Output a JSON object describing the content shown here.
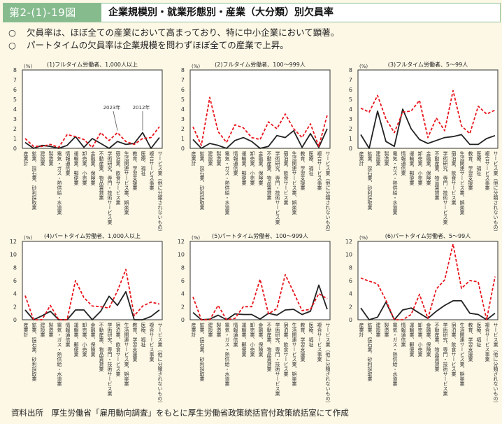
{
  "header": {
    "figure_number": "第2-(1)-19図",
    "title": "企業規模別・就業形態別・産業（大分類）別欠員率"
  },
  "bullets": [
    {
      "mark": "○",
      "text": "欠員率は、ほぼ全ての産業において高まっており、特に中小企業において顕著。"
    },
    {
      "mark": "○",
      "text": "パートタイムの欠員率は企業規模を問わずほぼ全ての産業で上昇。"
    }
  ],
  "source": "資料出所　厚生労働省「雇用動向調査」をもとに厚生労働省政策統括官付政策統括室にて作成",
  "colors": {
    "series_2023": "#e8141c",
    "series_2012": "#222222",
    "header_green": "#86bb8e",
    "background": "#fdf8e6"
  },
  "chart_data": [
    {
      "type": "line",
      "title": "(1)フルタイム労働者、1,000人以上",
      "ylabel": "(%)",
      "ylim": [
        0,
        8
      ],
      "yticks": [
        0,
        1,
        2,
        3,
        4,
        5,
        6,
        7,
        8
      ],
      "categories": [
        "産業計",
        "鉱業、採石業、砂利採取業",
        "建設業",
        "製造業",
        "電気・ガス・熱供給・水道業",
        "情報通信業",
        "運輸業、郵便業",
        "卸売業、小売業",
        "金融業、保険業",
        "不動産業、物品賃貸業",
        "学術研究、専門・技術サービス業",
        "宿泊業、飲食サービス業",
        "生活関連サービス業、娯楽業",
        "教育、学習支援業",
        "医療、福祉",
        "複合サービス事業",
        "サービス業（他に分類されないもの）"
      ],
      "series": [
        {
          "name": "2023年",
          "style": "dashed",
          "color": "#e8141c",
          "values": [
            1.0,
            0.2,
            0.2,
            0.4,
            0.1,
            1.4,
            1.2,
            0.9,
            0.1,
            1.6,
            0.8,
            1.6,
            0.7,
            0.4,
            1.0,
            1.1,
            2.2
          ]
        },
        {
          "name": "2012年",
          "style": "solid",
          "color": "#222222",
          "values": [
            0.6,
            0.0,
            0.3,
            0.2,
            0.0,
            0.3,
            1.2,
            0.1,
            1.0,
            0.5,
            0.0,
            0.7,
            0.4,
            0.5,
            1.6,
            0.0,
            1.1
          ]
        }
      ],
      "annotations": [
        {
          "text": "2023年",
          "target_series": "2023年",
          "index": 11
        },
        {
          "text": "2012年",
          "target_series": "2012年",
          "index": 14
        }
      ]
    },
    {
      "type": "line",
      "title": "(2)フルタイム労働者、100～999人",
      "ylabel": "(%)",
      "ylim": [
        0,
        8
      ],
      "yticks": [
        0,
        1,
        2,
        3,
        4,
        5,
        6,
        7,
        8
      ],
      "categories": [
        "産業計",
        "鉱業、採石業、砂利採取業",
        "建設業",
        "製造業",
        "電気・ガス・熱供給・水道業",
        "情報通信業",
        "運輸業、郵便業",
        "卸売業、小売業",
        "金融業、保険業",
        "不動産業、物品賃貸業",
        "学術研究、専門・技術サービス業",
        "宿泊業、飲食サービス業",
        "生活関連サービス業、娯楽業",
        "教育、学習支援業",
        "医療、福祉",
        "複合サービス事業",
        "サービス業（他に分類されないもの）"
      ],
      "series": [
        {
          "name": "2023年",
          "style": "dashed",
          "color": "#e8141c",
          "values": [
            2.2,
            0.3,
            5.2,
            1.7,
            0.6,
            2.4,
            2.1,
            1.1,
            0.9,
            2.7,
            2.0,
            3.5,
            2.0,
            1.1,
            2.5,
            0.2,
            3.4
          ]
        },
        {
          "name": "2012年",
          "style": "solid",
          "color": "#222222",
          "values": [
            0.9,
            0.0,
            0.5,
            0.3,
            0.0,
            0.8,
            1.1,
            0.7,
            0.0,
            0.2,
            1.3,
            1.1,
            1.8,
            0.1,
            1.5,
            0.1,
            2.0
          ]
        }
      ]
    },
    {
      "type": "line",
      "title": "(3)フルタイム労働者、5～99人",
      "ylabel": "(%)",
      "ylim": [
        0,
        8
      ],
      "yticks": [
        0,
        1,
        2,
        3,
        4,
        5,
        6,
        7,
        8
      ],
      "categories": [
        "産業計",
        "鉱業、採石業、砂利採取業",
        "建設業",
        "製造業",
        "電気・ガス・熱供給・水道業",
        "情報通信業",
        "運輸業、郵便業",
        "卸売業、小売業",
        "金融業、保険業",
        "不動産業、物品賃貸業",
        "学術研究、専門・技術サービス業",
        "宿泊業、飲食サービス業",
        "生活関連サービス業、娯楽業",
        "教育、学習支援業",
        "医療、福祉",
        "複合サービス事業",
        "サービス業（他に分類されないもの）"
      ],
      "series": [
        {
          "name": "2023年",
          "style": "dashed",
          "color": "#e8141c",
          "values": [
            4.1,
            3.7,
            5.4,
            3.0,
            1.6,
            3.7,
            3.8,
            4.9,
            1.1,
            3.1,
            1.8,
            5.9,
            2.3,
            1.5,
            4.3,
            3.5,
            3.9
          ]
        },
        {
          "name": "2012年",
          "style": "solid",
          "color": "#222222",
          "values": [
            1.4,
            0.0,
            3.8,
            0.7,
            0.2,
            4.0,
            2.0,
            0.9,
            0.5,
            0.8,
            1.1,
            1.2,
            1.4,
            0.4,
            0.4,
            1.0,
            1.3
          ]
        }
      ]
    },
    {
      "type": "line",
      "title": "(4)パートタイム労働者、1,000人以上",
      "ylabel": "(%)",
      "ylim": [
        0,
        12
      ],
      "yticks": [
        0,
        2,
        4,
        6,
        8,
        10,
        12
      ],
      "categories": [
        "産業計",
        "鉱業、採石業、砂利採取業",
        "建設業",
        "製造業",
        "電気・ガス・熱供給・水道業",
        "情報通信業",
        "運輸業、郵便業",
        "卸売業、小売業",
        "金融業、保険業",
        "不動産業、物品賃貸業",
        "学術研究、専門・技術サービス業",
        "宿泊業、飲食サービス業",
        "生活関連サービス業、娯楽業",
        "教育、学習支援業",
        "医療、福祉",
        "複合サービス事業",
        "サービス業（他に分類されないもの）"
      ],
      "series": [
        {
          "name": "2023年",
          "style": "dashed",
          "color": "#e8141c",
          "values": [
            3.7,
            0.0,
            0.0,
            2.2,
            0.0,
            0.0,
            6.0,
            3.4,
            2.1,
            2.0,
            1.8,
            4.4,
            7.7,
            0.6,
            2.1,
            2.7,
            2.4
          ]
        },
        {
          "name": "2012年",
          "style": "solid",
          "color": "#222222",
          "values": [
            1.5,
            0.0,
            0.6,
            1.3,
            0.0,
            0.0,
            1.5,
            1.5,
            0.0,
            1.3,
            3.6,
            2.2,
            4.3,
            0.0,
            0.0,
            0.5,
            1.5
          ]
        }
      ]
    },
    {
      "type": "line",
      "title": "(5)パートタイム労働者、100～999人",
      "ylabel": "(%)",
      "ylim": [
        0,
        12
      ],
      "yticks": [
        0,
        2,
        4,
        6,
        8,
        10,
        12
      ],
      "categories": [
        "産業計",
        "鉱業、採石業、砂利採取業",
        "建設業",
        "製造業",
        "電気・ガス・熱供給・水道業",
        "情報通信業",
        "運輸業、郵便業",
        "卸売業、小売業",
        "金融業、保険業",
        "不動産業、物品賃貸業",
        "学術研究、専門・技術サービス業",
        "宿泊業、飲食サービス業",
        "生活関連サービス業、娯楽業",
        "教育、学習支援業",
        "医療、福祉",
        "複合サービス事業",
        "サービス業（他に分類されないもの）"
      ],
      "series": [
        {
          "name": "2023年",
          "style": "dashed",
          "color": "#e8141c",
          "values": [
            3.5,
            0.0,
            0.0,
            2.2,
            0.0,
            0.2,
            2.0,
            2.0,
            6.2,
            0.9,
            1.7,
            6.9,
            4.2,
            1.4,
            1.6,
            4.0,
            3.2
          ]
        },
        {
          "name": "2012年",
          "style": "solid",
          "color": "#222222",
          "values": [
            1.1,
            0.0,
            0.1,
            0.7,
            0.0,
            0.9,
            0.8,
            0.8,
            0.1,
            1.0,
            0.7,
            1.5,
            1.6,
            0.8,
            1.3,
            5.3,
            1.6
          ]
        }
      ]
    },
    {
      "type": "line",
      "title": "(6)パートタイム労働者、5～99人",
      "ylabel": "(%)",
      "ylim": [
        0,
        12
      ],
      "yticks": [
        0,
        2,
        4,
        6,
        8,
        10,
        12
      ],
      "categories": [
        "産業計",
        "鉱業、採石業、砂利採取業",
        "建設業",
        "製造業",
        "電気・ガス・熱供給・水道業",
        "情報通信業",
        "運輸業、郵便業",
        "卸売業、小売業",
        "金融業、保険業",
        "不動産業、物品賃貸業",
        "学術研究、専門・技術サービス業",
        "宿泊業、飲食サービス業",
        "生活関連サービス業、娯楽業",
        "教育、学習支援業",
        "医療、福祉",
        "複合サービス事業",
        "サービス業（他に分類されないもの）"
      ],
      "series": [
        {
          "name": "2023年",
          "style": "dashed",
          "color": "#e8141c",
          "values": [
            6.4,
            5.9,
            5.5,
            3.0,
            0.0,
            0.0,
            0.8,
            3.9,
            0.2,
            4.7,
            6.1,
            11.6,
            4.8,
            6.0,
            5.8,
            0.0,
            6.6
          ]
        },
        {
          "name": "2012年",
          "style": "solid",
          "color": "#222222",
          "values": [
            1.8,
            0.0,
            0.4,
            2.7,
            0.0,
            1.5,
            1.8,
            1.0,
            0.2,
            1.3,
            2.2,
            2.9,
            2.9,
            1.0,
            0.8,
            0.0,
            1.0
          ]
        }
      ]
    }
  ]
}
